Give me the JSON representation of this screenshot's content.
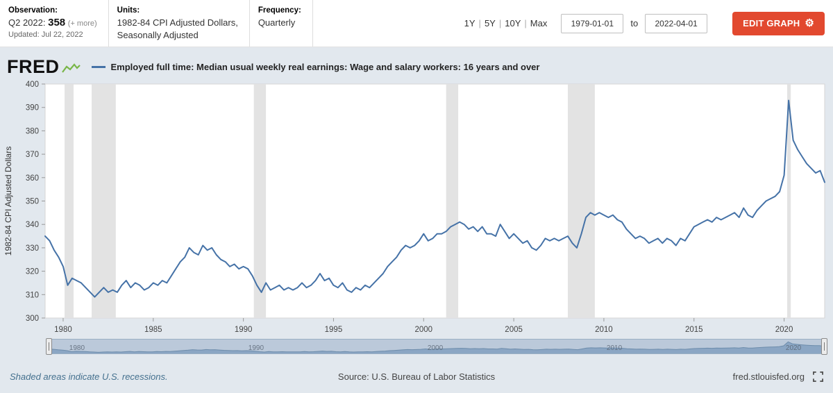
{
  "header": {
    "observation_label": "Observation:",
    "observation_period": "Q2 2022:",
    "observation_value": "358",
    "observation_more": "(+ more)",
    "updated": "Updated: Jul 22, 2022",
    "units_label": "Units:",
    "units_line1": "1982-84 CPI Adjusted Dollars,",
    "units_line2": "Seasonally Adjusted",
    "frequency_label": "Frequency:",
    "frequency_value": "Quarterly",
    "range_links": [
      "1Y",
      "5Y",
      "10Y",
      "Max"
    ],
    "date_start": "1979-01-01",
    "to_label": "to",
    "date_end": "2022-04-01",
    "edit_button": "EDIT GRAPH",
    "gear_icon": "⚙",
    "edit_button_color": "#e2492f"
  },
  "chart": {
    "brand": "FRED",
    "legend_label": "Employed full time: Median usual weekly real earnings: Wage and salary workers: 16 years and over"
  },
  "footer": {
    "recessions_note": "Shaded areas indicate U.S. recessions.",
    "source": "Source: U.S. Bureau of Labor Statistics",
    "site": "fred.stlouisfed.org"
  },
  "chart_data": {
    "type": "line",
    "title": "Employed full time: Median usual weekly real earnings: Wage and salary workers: 16 years and over",
    "ylabel": "1982-84 CPI Adjusted Dollars",
    "xlabel": "",
    "frequency": "Quarterly",
    "ylim": [
      300,
      400
    ],
    "yticks": [
      300,
      310,
      320,
      330,
      340,
      350,
      360,
      370,
      380,
      390,
      400
    ],
    "xlim": [
      1979.0,
      2022.25
    ],
    "xticks": [
      1980,
      1985,
      1990,
      1995,
      2000,
      2005,
      2010,
      2015,
      2020
    ],
    "slider_years": [
      1980,
      1990,
      2000,
      2010,
      2020
    ],
    "x_start": 1979.0,
    "x_step": 0.25,
    "line_color": "#4572a7",
    "recession_color": "#e3e3e3",
    "grid": false,
    "recessions": [
      [
        1980.08,
        1980.58
      ],
      [
        1981.58,
        1982.92
      ],
      [
        1990.58,
        1991.25
      ],
      [
        2001.25,
        2001.92
      ],
      [
        2008.0,
        2009.5
      ],
      [
        2020.17,
        2020.37
      ]
    ],
    "values": [
      335,
      333,
      329,
      326,
      322,
      314,
      317,
      316,
      315,
      313,
      311,
      309,
      311,
      313,
      311,
      312,
      311,
      314,
      316,
      313,
      315,
      314,
      312,
      313,
      315,
      314,
      316,
      315,
      318,
      321,
      324,
      326,
      330,
      328,
      327,
      331,
      329,
      330,
      327,
      325,
      324,
      322,
      323,
      321,
      322,
      321,
      318,
      314,
      311,
      315,
      312,
      313,
      314,
      312,
      313,
      312,
      313,
      315,
      313,
      314,
      316,
      319,
      316,
      317,
      314,
      313,
      315,
      312,
      311,
      313,
      312,
      314,
      313,
      315,
      317,
      319,
      322,
      324,
      326,
      329,
      331,
      330,
      331,
      333,
      336,
      333,
      334,
      336,
      336,
      337,
      339,
      340,
      341,
      340,
      338,
      339,
      337,
      339,
      336,
      336,
      335,
      340,
      337,
      334,
      336,
      334,
      332,
      333,
      330,
      329,
      331,
      334,
      333,
      334,
      333,
      334,
      335,
      332,
      330,
      336,
      343,
      345,
      344,
      345,
      344,
      343,
      344,
      342,
      341,
      338,
      336,
      334,
      335,
      334,
      332,
      333,
      334,
      332,
      334,
      333,
      331,
      334,
      333,
      336,
      339,
      340,
      341,
      342,
      341,
      343,
      342,
      343,
      344,
      345,
      343,
      347,
      344,
      343,
      346,
      348,
      350,
      351,
      352,
      354,
      361,
      393,
      376,
      372,
      369,
      366,
      364,
      362,
      363,
      358
    ]
  }
}
